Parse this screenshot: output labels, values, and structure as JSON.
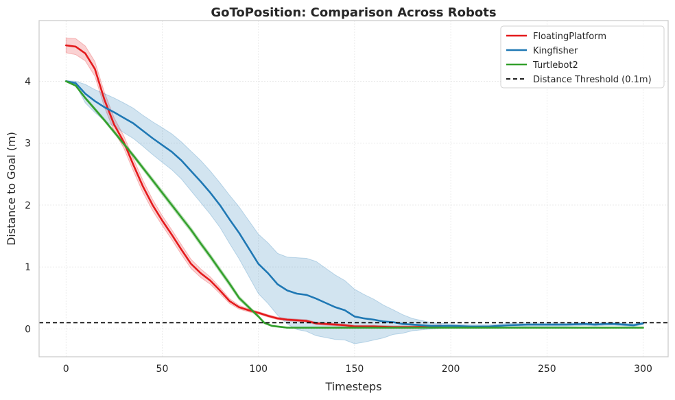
{
  "chart_data": {
    "type": "line",
    "title": "GoToPosition: Comparison Across Robots",
    "xlabel": "Timesteps",
    "ylabel": "Distance to Goal (m)",
    "xlim": [
      -14,
      313
    ],
    "ylim": [
      -0.45,
      4.98
    ],
    "xticks": [
      0,
      50,
      100,
      150,
      200,
      250,
      300
    ],
    "yticks": [
      0,
      1,
      2,
      3,
      4
    ],
    "grid": true,
    "legend_position": "top-right",
    "threshold": {
      "name": "Distance Threshold (0.1m)",
      "value": 0.1,
      "color": "#000000",
      "style": "dashed"
    },
    "series": [
      {
        "name": "FloatingPlatform",
        "color": "#e41a1c",
        "points": [
          [
            0,
            4.58
          ],
          [
            5,
            4.56
          ],
          [
            10,
            4.45
          ],
          [
            15,
            4.2
          ],
          [
            20,
            3.7
          ],
          [
            25,
            3.3
          ],
          [
            30,
            3.02
          ],
          [
            35,
            2.65
          ],
          [
            40,
            2.3
          ],
          [
            45,
            2.0
          ],
          [
            50,
            1.75
          ],
          [
            55,
            1.52
          ],
          [
            60,
            1.28
          ],
          [
            65,
            1.05
          ],
          [
            70,
            0.9
          ],
          [
            75,
            0.78
          ],
          [
            80,
            0.62
          ],
          [
            85,
            0.45
          ],
          [
            90,
            0.35
          ],
          [
            95,
            0.3
          ],
          [
            100,
            0.26
          ],
          [
            105,
            0.21
          ],
          [
            110,
            0.17
          ],
          [
            115,
            0.15
          ],
          [
            120,
            0.14
          ],
          [
            125,
            0.13
          ],
          [
            130,
            0.09
          ],
          [
            135,
            0.08
          ],
          [
            140,
            0.07
          ],
          [
            145,
            0.06
          ],
          [
            150,
            0.04
          ],
          [
            155,
            0.04
          ],
          [
            160,
            0.04
          ],
          [
            170,
            0.03
          ],
          [
            180,
            0.03
          ],
          [
            190,
            0.04
          ],
          [
            195,
            0.05
          ]
        ],
        "band": [
          [
            0,
            0.12
          ],
          [
            5,
            0.13
          ],
          [
            10,
            0.12
          ],
          [
            20,
            0.12
          ],
          [
            30,
            0.1
          ],
          [
            40,
            0.1
          ],
          [
            50,
            0.08
          ],
          [
            60,
            0.08
          ],
          [
            70,
            0.07
          ],
          [
            80,
            0.05
          ],
          [
            90,
            0.03
          ],
          [
            100,
            0.02
          ],
          [
            150,
            0.02
          ],
          [
            195,
            0.02
          ]
        ]
      },
      {
        "name": "Kingfisher",
        "color": "#1f78b4",
        "points": [
          [
            0,
            4.0
          ],
          [
            5,
            3.97
          ],
          [
            10,
            3.8
          ],
          [
            15,
            3.68
          ],
          [
            20,
            3.58
          ],
          [
            25,
            3.5
          ],
          [
            30,
            3.41
          ],
          [
            35,
            3.32
          ],
          [
            40,
            3.2
          ],
          [
            45,
            3.08
          ],
          [
            50,
            2.97
          ],
          [
            55,
            2.86
          ],
          [
            60,
            2.72
          ],
          [
            65,
            2.55
          ],
          [
            70,
            2.38
          ],
          [
            75,
            2.2
          ],
          [
            80,
            2.0
          ],
          [
            85,
            1.77
          ],
          [
            90,
            1.55
          ],
          [
            95,
            1.3
          ],
          [
            100,
            1.05
          ],
          [
            105,
            0.9
          ],
          [
            110,
            0.72
          ],
          [
            115,
            0.62
          ],
          [
            120,
            0.57
          ],
          [
            125,
            0.55
          ],
          [
            130,
            0.49
          ],
          [
            135,
            0.42
          ],
          [
            140,
            0.35
          ],
          [
            145,
            0.3
          ],
          [
            150,
            0.2
          ],
          [
            155,
            0.17
          ],
          [
            160,
            0.15
          ],
          [
            165,
            0.12
          ],
          [
            170,
            0.11
          ],
          [
            175,
            0.08
          ],
          [
            180,
            0.07
          ],
          [
            190,
            0.05
          ],
          [
            200,
            0.05
          ],
          [
            210,
            0.04
          ],
          [
            220,
            0.04
          ],
          [
            225,
            0.05
          ],
          [
            230,
            0.06
          ],
          [
            240,
            0.07
          ],
          [
            250,
            0.07
          ],
          [
            260,
            0.07
          ],
          [
            270,
            0.08
          ],
          [
            275,
            0.07
          ],
          [
            280,
            0.08
          ],
          [
            285,
            0.08
          ],
          [
            290,
            0.07
          ],
          [
            295,
            0.06
          ],
          [
            300,
            0.09
          ]
        ],
        "band": [
          [
            0,
            0.01
          ],
          [
            5,
            0.03
          ],
          [
            10,
            0.15
          ],
          [
            20,
            0.22
          ],
          [
            30,
            0.24
          ],
          [
            40,
            0.25
          ],
          [
            50,
            0.28
          ],
          [
            60,
            0.3
          ],
          [
            70,
            0.34
          ],
          [
            80,
            0.36
          ],
          [
            90,
            0.42
          ],
          [
            100,
            0.48
          ],
          [
            110,
            0.5
          ],
          [
            120,
            0.58
          ],
          [
            130,
            0.6
          ],
          [
            140,
            0.52
          ],
          [
            150,
            0.44
          ],
          [
            160,
            0.33
          ],
          [
            170,
            0.2
          ],
          [
            180,
            0.1
          ],
          [
            190,
            0.05
          ],
          [
            200,
            0.03
          ],
          [
            300,
            0.02
          ]
        ]
      },
      {
        "name": "Turtlebot2",
        "color": "#33a02c",
        "points": [
          [
            0,
            4.0
          ],
          [
            5,
            3.93
          ],
          [
            10,
            3.73
          ],
          [
            15,
            3.55
          ],
          [
            20,
            3.37
          ],
          [
            25,
            3.18
          ],
          [
            30,
            2.99
          ],
          [
            35,
            2.8
          ],
          [
            40,
            2.6
          ],
          [
            45,
            2.4
          ],
          [
            50,
            2.2
          ],
          [
            55,
            2.0
          ],
          [
            60,
            1.8
          ],
          [
            65,
            1.6
          ],
          [
            70,
            1.38
          ],
          [
            75,
            1.17
          ],
          [
            80,
            0.95
          ],
          [
            85,
            0.73
          ],
          [
            90,
            0.5
          ],
          [
            95,
            0.35
          ],
          [
            100,
            0.2
          ],
          [
            103,
            0.1
          ],
          [
            107,
            0.05
          ],
          [
            115,
            0.02
          ],
          [
            125,
            0.02
          ],
          [
            150,
            0.02
          ],
          [
            200,
            0.02
          ],
          [
            250,
            0.02
          ],
          [
            300,
            0.02
          ]
        ],
        "band": [
          [
            0,
            0.01
          ],
          [
            10,
            0.02
          ],
          [
            30,
            0.03
          ],
          [
            50,
            0.04
          ],
          [
            70,
            0.04
          ],
          [
            85,
            0.04
          ],
          [
            100,
            0.02
          ],
          [
            110,
            0.01
          ],
          [
            300,
            0.01
          ]
        ]
      }
    ]
  }
}
